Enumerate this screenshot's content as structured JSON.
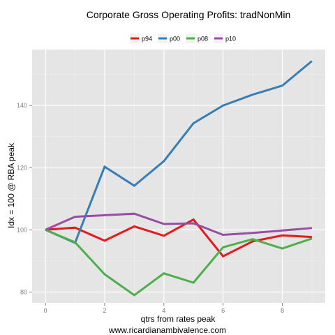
{
  "chart_data": {
    "type": "line",
    "title": "Corporate Gross Operating Profits: tradNonMin",
    "xlabel": "qtrs from rates peak",
    "ylabel": "Idx = 100 @ RBA peak",
    "caption": "www.ricardianambivalence.com",
    "x": [
      0,
      1,
      2,
      3,
      4,
      5,
      6,
      7,
      8,
      9
    ],
    "xlim": [
      -0.45,
      9.45
    ],
    "ylim": [
      76.5,
      158
    ],
    "x_ticks": [
      0,
      2,
      4,
      6,
      8
    ],
    "y_ticks": [
      80,
      100,
      120,
      140
    ],
    "x_tick_labels": [
      "0",
      "2",
      "4",
      "6",
      "8"
    ],
    "y_tick_labels": [
      "80",
      "100",
      "120",
      "140"
    ],
    "grid": true,
    "legend_position": "top",
    "panel_background": "#e5e5e5",
    "series": [
      {
        "name": "p94",
        "color": "#e41a1c",
        "values": [
          100,
          100.7,
          96.5,
          101.1,
          98.1,
          103.3,
          91.5,
          96.3,
          98.2,
          97.7
        ]
      },
      {
        "name": "p00",
        "color": "#377eb8",
        "values": [
          100,
          95.8,
          120.3,
          114.2,
          122.1,
          134.3,
          140.0,
          143.5,
          146.4,
          154.3
        ]
      },
      {
        "name": "p08",
        "color": "#4daf4a",
        "values": [
          100,
          96.0,
          85.7,
          79.0,
          86.0,
          83.0,
          94.4,
          97.0,
          94.0,
          97.2
        ]
      },
      {
        "name": "p10",
        "color": "#984ea3",
        "values": [
          100,
          104.2,
          104.7,
          105.2,
          101.9,
          102.1,
          98.4,
          99.0,
          99.8,
          100.6
        ]
      }
    ]
  }
}
